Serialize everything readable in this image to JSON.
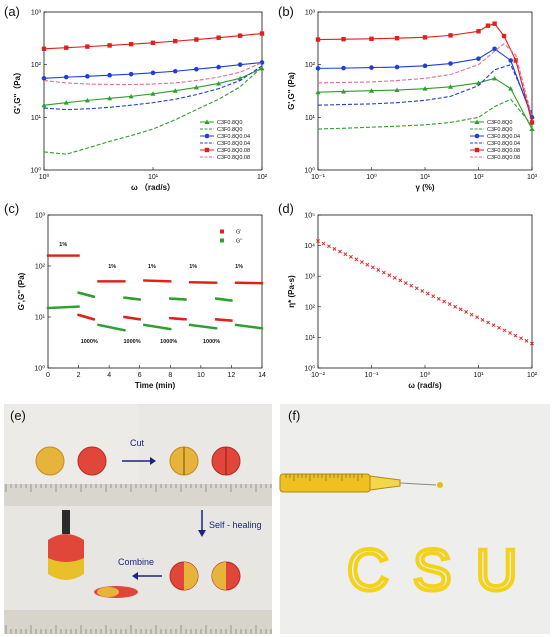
{
  "panels": {
    "a": {
      "label": "(a)"
    },
    "b": {
      "label": "(b)"
    },
    "c": {
      "label": "(c)"
    },
    "d": {
      "label": "(d)"
    },
    "e": {
      "label": "(e)",
      "cut_label": "Cut",
      "self_healing_label": "Self - healing",
      "combine_label": "Combine"
    },
    "f": {
      "label": "(f)",
      "letters": "CSU"
    }
  },
  "colors": {
    "green": "#2e9e2e",
    "blue": "#1f3fd9",
    "red": "#e0201b",
    "pink": "#e86a8a",
    "yellow": "#f2d21b"
  },
  "chart_data": [
    {
      "id": "a",
      "type": "line",
      "xlabel": "ω （rad/s）",
      "ylabel": "G',G''（Pa）",
      "xscale": "log",
      "yscale": "log",
      "xlim": [
        1,
        100
      ],
      "ylim": [
        1,
        1000
      ],
      "xticks": [
        "10⁰",
        "10¹",
        "10²"
      ],
      "yticks": [
        "10⁰",
        "10¹",
        "10²",
        "10³"
      ],
      "legend_position": "bottom-right",
      "series": [
        {
          "name": "C3F0.8Q0",
          "color": "green",
          "style": "solid-triangle",
          "x": [
            1,
            1.6,
            2.5,
            4,
            6.3,
            10,
            16,
            25,
            40,
            63,
            100
          ],
          "y": [
            17,
            19,
            21,
            23,
            25,
            28,
            32,
            37,
            44,
            55,
            85
          ]
        },
        {
          "name": "C3F0.8Q0",
          "color": "green",
          "style": "dashed",
          "x": [
            1,
            1.6,
            2.5,
            4,
            6.3,
            10,
            16,
            25,
            40,
            63,
            100
          ],
          "y": [
            2.2,
            2.0,
            2.6,
            3.5,
            4.5,
            6,
            9,
            14,
            22,
            38,
            90
          ]
        },
        {
          "name": "C3F0.8Q0.04",
          "color": "blue",
          "style": "solid-circle",
          "x": [
            1,
            1.6,
            2.5,
            4,
            6.3,
            10,
            16,
            25,
            40,
            63,
            100
          ],
          "y": [
            55,
            58,
            60,
            63,
            66,
            70,
            75,
            82,
            90,
            100,
            110
          ]
        },
        {
          "name": "C3F0.8Q0.04",
          "color": "blue",
          "style": "dashed",
          "x": [
            1,
            1.6,
            2.5,
            4,
            6.3,
            10,
            16,
            25,
            40,
            63,
            100
          ],
          "y": [
            15,
            14,
            14.5,
            15.5,
            17,
            19,
            22,
            27,
            35,
            50,
            95
          ]
        },
        {
          "name": "C3F0.8Q0.08",
          "color": "red",
          "style": "solid-square",
          "x": [
            1,
            1.6,
            2.5,
            4,
            6.3,
            10,
            16,
            25,
            40,
            63,
            100
          ],
          "y": [
            200,
            210,
            220,
            232,
            245,
            260,
            280,
            300,
            325,
            355,
            390
          ]
        },
        {
          "name": "C3F0.8Q0.08",
          "color": "pink",
          "style": "dashed",
          "x": [
            1,
            1.6,
            2.5,
            4,
            6.3,
            10,
            16,
            25,
            40,
            63,
            100
          ],
          "y": [
            50,
            45,
            43,
            42,
            42,
            43,
            45,
            50,
            58,
            72,
            110
          ]
        }
      ]
    },
    {
      "id": "b",
      "type": "line",
      "xlabel": "γ (%)",
      "ylabel": "G',G'' (Pa)",
      "xscale": "log",
      "yscale": "log",
      "xlim": [
        0.1,
        1000
      ],
      "ylim": [
        1,
        1000
      ],
      "xticks": [
        "10⁻¹",
        "10⁰",
        "10¹",
        "10²",
        "10³"
      ],
      "yticks": [
        "10⁰",
        "10¹",
        "10²",
        "10³"
      ],
      "legend_position": "bottom-right",
      "series": [
        {
          "name": "C3F0.8Q0",
          "color": "green",
          "style": "solid-triangle",
          "x": [
            0.1,
            0.3,
            1,
            3,
            10,
            30,
            100,
            200,
            400,
            1000
          ],
          "y": [
            30,
            31,
            32,
            33,
            35,
            38,
            45,
            55,
            35,
            6
          ]
        },
        {
          "name": "C3F0.8Q0",
          "color": "green",
          "style": "dashed",
          "x": [
            0.1,
            0.3,
            1,
            3,
            10,
            30,
            100,
            200,
            400,
            1000
          ],
          "y": [
            6,
            6.2,
            6.5,
            6.8,
            7.2,
            8,
            10,
            16,
            22,
            7
          ]
        },
        {
          "name": "C3F0.8Q0.04",
          "color": "blue",
          "style": "solid-circle",
          "x": [
            0.1,
            0.3,
            1,
            3,
            10,
            30,
            100,
            200,
            400,
            1000
          ],
          "y": [
            85,
            86,
            88,
            90,
            95,
            105,
            130,
            200,
            120,
            10
          ]
        },
        {
          "name": "C3F0.8Q0.04",
          "color": "blue",
          "style": "dashed",
          "x": [
            0.1,
            0.3,
            1,
            3,
            10,
            30,
            100,
            200,
            400,
            1000
          ],
          "y": [
            17,
            17.5,
            18,
            19,
            21,
            25,
            40,
            80,
            100,
            12
          ]
        },
        {
          "name": "C3F0.8Q0.08",
          "color": "red",
          "style": "solid-square",
          "x": [
            0.1,
            0.3,
            1,
            3,
            10,
            30,
            100,
            150,
            200,
            300,
            500,
            1000
          ],
          "y": [
            300,
            305,
            310,
            318,
            330,
            360,
            430,
            550,
            600,
            350,
            120,
            8
          ]
        },
        {
          "name": "C3F0.8Q0.08",
          "color": "pink",
          "style": "dashed",
          "x": [
            0.1,
            0.3,
            1,
            3,
            10,
            30,
            100,
            200,
            300,
            500,
            1000
          ],
          "y": [
            45,
            46,
            47,
            50,
            55,
            65,
            100,
            180,
            250,
            150,
            10
          ]
        }
      ]
    },
    {
      "id": "c",
      "type": "scatter",
      "xlabel": "Time (min)",
      "ylabel": "G',G'' (Pa)",
      "yscale": "log",
      "xlim": [
        0,
        14
      ],
      "ylim": [
        1,
        1000
      ],
      "xticks": [
        "0",
        "2",
        "4",
        "6",
        "8",
        "10",
        "12",
        "14"
      ],
      "yticks": [
        "10⁰",
        "10¹",
        "10²",
        "10³"
      ],
      "legend_position": "top-right",
      "legend": [
        "G'",
        "G''"
      ],
      "strain_labels": [
        "1%",
        "1000%",
        "1%",
        "1000%",
        "1%",
        "1000%",
        "1%",
        "1000%",
        "1%"
      ],
      "series": [
        {
          "name": "G'",
          "color": "red",
          "segments": [
            {
              "x": [
                0,
                2
              ],
              "y": [
                160,
                160
              ]
            },
            {
              "x": [
                2,
                3
              ],
              "y": [
                11,
                9
              ]
            },
            {
              "x": [
                3.3,
                5
              ],
              "y": [
                50,
                50
              ]
            },
            {
              "x": [
                5,
                6
              ],
              "y": [
                10,
                9
              ]
            },
            {
              "x": [
                6.3,
                8
              ],
              "y": [
                52,
                50
              ]
            },
            {
              "x": [
                8,
                9
              ],
              "y": [
                9.5,
                9
              ]
            },
            {
              "x": [
                9.3,
                11
              ],
              "y": [
                48,
                47
              ]
            },
            {
              "x": [
                11,
                12
              ],
              "y": [
                9,
                8.5
              ]
            },
            {
              "x": [
                12.3,
                14
              ],
              "y": [
                47,
                46
              ]
            }
          ]
        },
        {
          "name": "G''",
          "color": "green",
          "segments": [
            {
              "x": [
                0,
                2
              ],
              "y": [
                15,
                16
              ]
            },
            {
              "x": [
                2,
                3
              ],
              "y": [
                30,
                25
              ]
            },
            {
              "x": [
                3.3,
                5
              ],
              "y": [
                7,
                5.5
              ]
            },
            {
              "x": [
                5,
                6
              ],
              "y": [
                24,
                22
              ]
            },
            {
              "x": [
                6.3,
                8
              ],
              "y": [
                7,
                5.8
              ]
            },
            {
              "x": [
                8,
                9
              ],
              "y": [
                23,
                22
              ]
            },
            {
              "x": [
                9.3,
                11
              ],
              "y": [
                7,
                6
              ]
            },
            {
              "x": [
                11,
                12
              ],
              "y": [
                23,
                21
              ]
            },
            {
              "x": [
                12.3,
                14
              ],
              "y": [
                7,
                6
              ]
            }
          ]
        }
      ]
    },
    {
      "id": "d",
      "type": "scatter",
      "xlabel": "ω (rad/s)",
      "ylabel": "η* (Pa·s)",
      "xscale": "log",
      "yscale": "log",
      "xlim": [
        0.01,
        100
      ],
      "ylim": [
        1,
        100000
      ],
      "xticks": [
        "10⁻²",
        "10⁻¹",
        "10⁰",
        "10¹",
        "10²"
      ],
      "yticks": [
        "10⁰",
        "10¹",
        "10²",
        "10³",
        "10⁴",
        "10⁵"
      ],
      "series": [
        {
          "name": "",
          "color": "red",
          "x_log_start": -2,
          "x_log_end": 2,
          "y_log_start": 4.15,
          "y_log_end": 0.8,
          "points": 40
        }
      ]
    }
  ]
}
